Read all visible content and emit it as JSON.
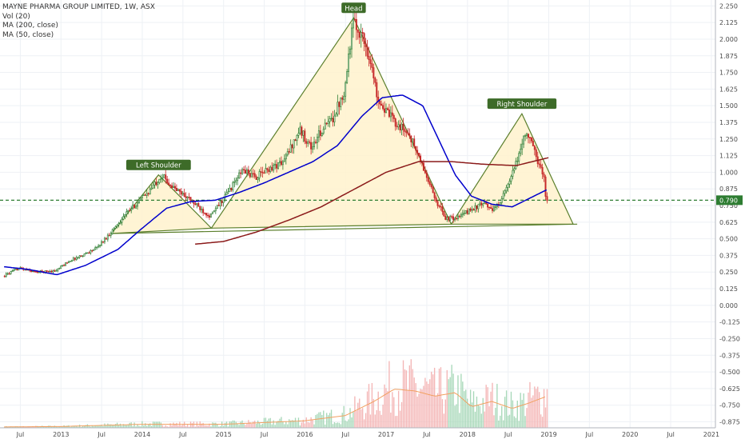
{
  "chart_data": {
    "type": "candlestick",
    "title": "MAYNE PHARMA GROUP LIMITED, 1W, ASX",
    "indicators": [
      "Vol (20)",
      "MA (200, close)",
      "MA (50, close)"
    ],
    "current_price_label": "0.790",
    "price_axis": {
      "ticks": [
        "2.250",
        "2.125",
        "2.000",
        "1.875",
        "1.750",
        "1.625",
        "1.500",
        "1.375",
        "1.250",
        "1.125",
        "1.000",
        "0.875",
        "0.750",
        "0.625",
        "0.500",
        "0.375",
        "0.250",
        "0.125",
        "0.000",
        "-0.125",
        "-0.250",
        "-0.375",
        "-0.500",
        "-0.625",
        "-0.750",
        "-0.875"
      ],
      "range": [
        -0.92,
        2.27
      ]
    },
    "time_axis": {
      "ticks": [
        {
          "label": "Jul",
          "t": 2012.5
        },
        {
          "label": "2013",
          "t": 2013.0
        },
        {
          "label": "Jul",
          "t": 2013.5
        },
        {
          "label": "2014",
          "t": 2014.0
        },
        {
          "label": "Jul",
          "t": 2014.5
        },
        {
          "label": "2015",
          "t": 2015.0
        },
        {
          "label": "Jul",
          "t": 2015.5
        },
        {
          "label": "2016",
          "t": 2016.0
        },
        {
          "label": "Jul",
          "t": 2016.5
        },
        {
          "label": "2017",
          "t": 2017.0
        },
        {
          "label": "Jul",
          "t": 2017.5
        },
        {
          "label": "2018",
          "t": 2018.0
        },
        {
          "label": "Jul",
          "t": 2018.5
        },
        {
          "label": "2019",
          "t": 2019.0
        },
        {
          "label": "Jul",
          "t": 2019.5
        },
        {
          "label": "2020",
          "t": 2020.0
        },
        {
          "label": "Jul",
          "t": 2020.5
        },
        {
          "label": "2021",
          "t": 2021.0
        }
      ]
    },
    "price_path": [
      [
        2012.3,
        0.22
      ],
      [
        2012.5,
        0.28
      ],
      [
        2012.7,
        0.25
      ],
      [
        2012.95,
        0.26
      ],
      [
        2013.1,
        0.33
      ],
      [
        2013.25,
        0.37
      ],
      [
        2013.45,
        0.43
      ],
      [
        2013.6,
        0.53
      ],
      [
        2013.8,
        0.68
      ],
      [
        2013.95,
        0.77
      ],
      [
        2014.1,
        0.86
      ],
      [
        2014.25,
        0.98
      ],
      [
        2014.4,
        0.88
      ],
      [
        2014.55,
        0.82
      ],
      [
        2014.7,
        0.74
      ],
      [
        2014.85,
        0.67
      ],
      [
        2014.95,
        0.75
      ],
      [
        2015.1,
        0.88
      ],
      [
        2015.25,
        1.02
      ],
      [
        2015.4,
        0.96
      ],
      [
        2015.55,
        1.02
      ],
      [
        2015.75,
        1.08
      ],
      [
        2015.95,
        1.32
      ],
      [
        2016.1,
        1.18
      ],
      [
        2016.2,
        1.3
      ],
      [
        2016.35,
        1.4
      ],
      [
        2016.5,
        1.62
      ],
      [
        2016.6,
        2.12
      ],
      [
        2016.7,
        2.05
      ],
      [
        2016.8,
        1.88
      ],
      [
        2016.9,
        1.58
      ],
      [
        2017.0,
        1.46
      ],
      [
        2017.15,
        1.36
      ],
      [
        2017.3,
        1.28
      ],
      [
        2017.45,
        1.06
      ],
      [
        2017.6,
        0.82
      ],
      [
        2017.75,
        0.65
      ],
      [
        2017.9,
        0.66
      ],
      [
        2018.05,
        0.72
      ],
      [
        2018.2,
        0.76
      ],
      [
        2018.35,
        0.72
      ],
      [
        2018.5,
        0.88
      ],
      [
        2018.62,
        1.08
      ],
      [
        2018.72,
        1.3
      ],
      [
        2018.8,
        1.22
      ],
      [
        2018.88,
        1.08
      ],
      [
        2018.95,
        0.98
      ],
      [
        2018.98,
        0.78
      ]
    ],
    "series": [
      {
        "name": "MA (50, close)",
        "color": "#0000cc",
        "points": [
          [
            2012.3,
            0.29
          ],
          [
            2012.6,
            0.27
          ],
          [
            2012.95,
            0.23
          ],
          [
            2013.3,
            0.3
          ],
          [
            2013.7,
            0.42
          ],
          [
            2014.0,
            0.58
          ],
          [
            2014.3,
            0.73
          ],
          [
            2014.6,
            0.78
          ],
          [
            2014.9,
            0.79
          ],
          [
            2015.2,
            0.85
          ],
          [
            2015.5,
            0.92
          ],
          [
            2015.8,
            1.0
          ],
          [
            2016.1,
            1.08
          ],
          [
            2016.4,
            1.2
          ],
          [
            2016.7,
            1.42
          ],
          [
            2016.95,
            1.56
          ],
          [
            2017.2,
            1.58
          ],
          [
            2017.45,
            1.5
          ],
          [
            2017.65,
            1.24
          ],
          [
            2017.85,
            0.98
          ],
          [
            2018.05,
            0.82
          ],
          [
            2018.3,
            0.76
          ],
          [
            2018.55,
            0.74
          ],
          [
            2018.75,
            0.8
          ],
          [
            2018.98,
            0.87
          ]
        ]
      },
      {
        "name": "MA (200, close)",
        "color": "#8b1a1a",
        "points": [
          [
            2014.65,
            0.46
          ],
          [
            2015.0,
            0.48
          ],
          [
            2015.4,
            0.55
          ],
          [
            2015.8,
            0.64
          ],
          [
            2016.2,
            0.74
          ],
          [
            2016.6,
            0.87
          ],
          [
            2017.0,
            1.0
          ],
          [
            2017.4,
            1.08
          ],
          [
            2017.8,
            1.08
          ],
          [
            2018.2,
            1.06
          ],
          [
            2018.6,
            1.05
          ],
          [
            2019.0,
            1.11
          ]
        ]
      }
    ],
    "patterns": [
      {
        "label": "Left Shoulder",
        "points": [
          [
            2013.62,
            0.54
          ],
          [
            2014.2,
            0.98
          ],
          [
            2014.85,
            0.58
          ]
        ]
      },
      {
        "label": "Head",
        "points": [
          [
            2014.85,
            0.58
          ],
          [
            2016.6,
            2.16
          ],
          [
            2017.8,
            0.61
          ]
        ]
      },
      {
        "label": "Right Shoulder",
        "points": [
          [
            2017.8,
            0.61
          ],
          [
            2018.67,
            1.44
          ],
          [
            2019.3,
            0.61
          ]
        ]
      }
    ],
    "neckline": [
      [
        2013.62,
        0.54
      ],
      [
        2019.35,
        0.61
      ]
    ],
    "support_level": 0.79,
    "volume": {
      "up_color": "#a8d8b9",
      "down_color": "#f4b6b6",
      "ma_color": "#f2a061",
      "ma_points": [
        [
          2012.3,
          0.01
        ],
        [
          2013.0,
          0.015
        ],
        [
          2014.0,
          0.04
        ],
        [
          2015.0,
          0.04
        ],
        [
          2015.5,
          0.06
        ],
        [
          2016.0,
          0.08
        ],
        [
          2016.5,
          0.14
        ],
        [
          2016.85,
          0.3
        ],
        [
          2017.1,
          0.44
        ],
        [
          2017.35,
          0.42
        ],
        [
          2017.6,
          0.36
        ],
        [
          2017.85,
          0.4
        ],
        [
          2018.05,
          0.24
        ],
        [
          2018.3,
          0.3
        ],
        [
          2018.55,
          0.22
        ],
        [
          2018.75,
          0.28
        ],
        [
          2018.98,
          0.36
        ]
      ]
    },
    "xlim": [
      2012.25,
      2021.05
    ],
    "grid": true,
    "legend": "top-left"
  }
}
